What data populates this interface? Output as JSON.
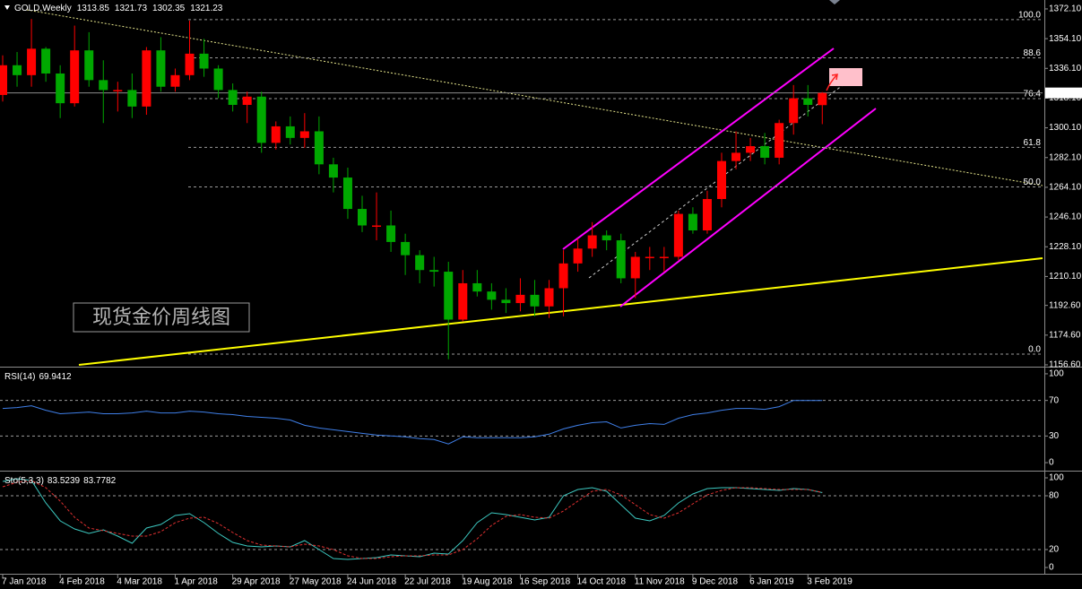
{
  "chart_data": [
    {
      "type": "candlestick",
      "title": "GOLD,Weekly",
      "x": [
        "7 Jan 2018",
        null,
        null,
        null,
        "4 Feb 2018",
        null,
        null,
        null,
        "4 Mar 2018",
        null,
        null,
        null,
        "1 Apr 2018",
        null,
        null,
        null,
        "29 Apr 2018",
        null,
        null,
        null,
        "27 May 2018",
        null,
        null,
        null,
        "24 Jun 2018",
        null,
        null,
        null,
        "22 Jul 2018",
        null,
        null,
        null,
        "19 Aug 2018",
        null,
        null,
        null,
        "16 Sep 2018",
        null,
        null,
        null,
        "14 Oct 2018",
        null,
        null,
        null,
        "11 Nov 2018",
        null,
        null,
        null,
        "9 Dec 2018",
        null,
        null,
        null,
        "6 Jan 2019",
        null,
        null,
        null,
        "3 Feb 2019",
        null
      ],
      "open": [
        1320,
        1338,
        1332,
        1348,
        1333,
        1315,
        1347,
        1329,
        1323,
        1323,
        1313,
        1347,
        1325,
        1332,
        1345,
        1336,
        1323,
        1314,
        1319,
        1291,
        1301,
        1294,
        1298,
        1278,
        1270,
        1251,
        1241,
        1241,
        1231,
        1223,
        1214,
        1213,
        1184,
        1206,
        1201,
        1196,
        1194,
        1199,
        1192,
        1203,
        1218,
        1227,
        1235,
        1232,
        1209,
        1222,
        1222,
        1222,
        1248,
        1238,
        1257,
        1280,
        1285,
        1289,
        1282,
        1303,
        1318,
        1313.85
      ],
      "high": [
        1344,
        1346,
        1366,
        1349,
        1338,
        1362,
        1358,
        1341,
        1328,
        1333,
        1349,
        1355,
        1336,
        1365,
        1354,
        1338,
        1327,
        1322,
        1322,
        1304,
        1307,
        1309,
        1307,
        1282,
        1276,
        1259,
        1261,
        1250,
        1236,
        1226,
        1222,
        1219,
        1214,
        1214,
        1206,
        1203,
        1209,
        1208,
        1208,
        1226,
        1233,
        1243,
        1238,
        1236,
        1225,
        1228,
        1228,
        1250,
        1252,
        1262,
        1285,
        1298,
        1294,
        1297,
        1305,
        1326,
        1326,
        1321.73
      ],
      "low": [
        1316,
        1325,
        1325,
        1328,
        1306,
        1313,
        1325,
        1303,
        1310,
        1306,
        1308,
        1322,
        1322,
        1329,
        1331,
        1318,
        1310,
        1303,
        1285,
        1287,
        1290,
        1288,
        1272,
        1261,
        1245,
        1237,
        1232,
        1225,
        1211,
        1206,
        1204,
        1160,
        1183,
        1198,
        1190,
        1188,
        1189,
        1186,
        1185,
        1186,
        1213,
        1222,
        1226,
        1206,
        1197,
        1214,
        1213,
        1220,
        1236,
        1236,
        1252,
        1275,
        1280,
        1278,
        1278,
        1296,
        1307,
        1302.35
      ],
      "close": [
        1338,
        1332,
        1348,
        1333,
        1315,
        1347,
        1329,
        1323,
        1323,
        1313,
        1347,
        1325,
        1332,
        1345,
        1336,
        1323,
        1314,
        1319,
        1291,
        1301,
        1294,
        1298,
        1278,
        1270,
        1251,
        1241,
        1241,
        1231,
        1223,
        1214,
        1213,
        1184,
        1206,
        1201,
        1196,
        1194,
        1199,
        1192,
        1203,
        1218,
        1227,
        1235,
        1232,
        1209,
        1222,
        1222,
        1222,
        1248,
        1238,
        1257,
        1280,
        1285,
        1289,
        1282,
        1303,
        1318,
        1314,
        1321.23
      ],
      "up_color": "#ff0000",
      "down_color": "#00a800",
      "ylim": [
        1155.5,
        1377.5
      ],
      "yticks": [
        {
          "value": 1372.1,
          "label": "1372.10"
        },
        {
          "value": 1354.1,
          "label": "1354.10"
        },
        {
          "value": 1336.1,
          "label": "1336.10"
        },
        {
          "value": 1318.1,
          "label": "1318.10"
        },
        {
          "value": 1300.1,
          "label": "1300.10"
        },
        {
          "value": 1282.1,
          "label": "1282.10"
        },
        {
          "value": 1264.1,
          "label": "1264.10"
        },
        {
          "value": 1246.1,
          "label": "1246.10"
        },
        {
          "value": 1228.1,
          "label": "1228.10"
        },
        {
          "value": 1210.1,
          "label": "1210.10"
        },
        {
          "value": 1192.6,
          "label": "1192.60"
        },
        {
          "value": 1174.6,
          "label": "1174.60"
        },
        {
          "value": 1156.6,
          "label": "1156.60"
        }
      ],
      "fib_levels": [
        {
          "price": 1365.6,
          "label": "100.0"
        },
        {
          "price": 1342.5,
          "label": "88.6"
        },
        {
          "price": 1317.8,
          "label": "76.4"
        },
        {
          "price": 1288.3,
          "label": "61.8"
        },
        {
          "price": 1264.3,
          "label": "50.0"
        },
        {
          "price": 1163.1,
          "label": "0.0"
        }
      ],
      "annotation": "现货金价周线图"
    },
    {
      "type": "line",
      "title": "RSI(14)",
      "series": [
        {
          "color": "#3f7fe8",
          "values": [
            61,
            62,
            64,
            59,
            55,
            56,
            57,
            55,
            55,
            56,
            58,
            56,
            56,
            58,
            57,
            55,
            54,
            52,
            51,
            50,
            48,
            42,
            39,
            37,
            35,
            33,
            31,
            30,
            29,
            27,
            26,
            21,
            29,
            28,
            28,
            28,
            28,
            29,
            32,
            38,
            42,
            45,
            46,
            39,
            42,
            44,
            43,
            50,
            54,
            56,
            59,
            61,
            61,
            60,
            63,
            70,
            70,
            69.9412
          ]
        }
      ],
      "ylim": [
        -7,
        106
      ],
      "yticks": [
        0,
        30,
        70,
        100
      ],
      "levels": [
        30,
        70
      ]
    },
    {
      "type": "line",
      "title": "Sto(5,3,3)",
      "series": [
        {
          "color": "#3cc8c0",
          "values": [
            96,
            99,
            97,
            72,
            52,
            43,
            38,
            42,
            35,
            27,
            44,
            48,
            58,
            60,
            50,
            38,
            28,
            24,
            23,
            24,
            23,
            30,
            20,
            10,
            9,
            10,
            11,
            14,
            13,
            12,
            16,
            15,
            30,
            50,
            61,
            59,
            56,
            53,
            56,
            80,
            87,
            89,
            85,
            70,
            55,
            52,
            58,
            72,
            82,
            88,
            89,
            89,
            88,
            87,
            86,
            88,
            87,
            83.5239
          ]
        },
        {
          "color": "#e03030",
          "dashed": true,
          "values": [
            90,
            95,
            97,
            89,
            74,
            56,
            44,
            41,
            38,
            35,
            35,
            40,
            50,
            55,
            56,
            49,
            39,
            30,
            25,
            24,
            23,
            26,
            24,
            20,
            13,
            10,
            10,
            12,
            13,
            13,
            14,
            14,
            20,
            32,
            47,
            57,
            59,
            56,
            55,
            63,
            74,
            85,
            87,
            81,
            70,
            59,
            55,
            61,
            71,
            81,
            86,
            89,
            89,
            88,
            87,
            87,
            87,
            83.7782
          ]
        }
      ],
      "ylim": [
        -7,
        106
      ],
      "yticks": [
        0,
        20,
        80,
        100
      ],
      "levels": [
        20,
        80
      ]
    }
  ]
}
